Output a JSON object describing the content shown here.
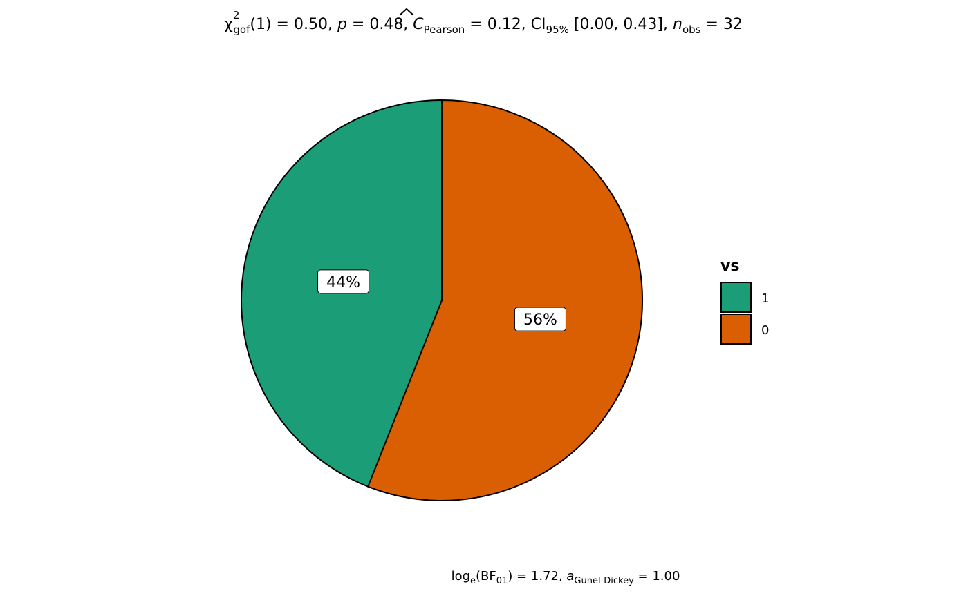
{
  "chart_data": {
    "type": "pie",
    "title": {
      "chi_symbol": "χ",
      "chi_sup": "2",
      "chi_sub": "gof",
      "df": "(1)",
      "eq1": " = 0.50, ",
      "p": "p",
      "eq2": " = 0.48, ",
      "c": "C",
      "c_sub": "Pearson",
      "eq3": " = 0.12, CI",
      "ci_sub": "95%",
      "ci": " [0.00, 0.43], ",
      "n": "n",
      "n_sub": "obs",
      "eq4": " = 32"
    },
    "caption": {
      "log": "log",
      "log_sub": "e",
      "bf_open": "(BF",
      "bf_sub": "01",
      "bf_close": ") = 1.72, ",
      "a": "a",
      "a_sub": "Gunel-Dickey",
      "eq": " = 1.00"
    },
    "legend": {
      "title": "vs",
      "placement": "right"
    },
    "slices": [
      {
        "category": "1",
        "value": 44,
        "label": "44%",
        "color": "#1B9E77"
      },
      {
        "category": "0",
        "value": 56,
        "label": "56%",
        "color": "#D95F02"
      }
    ],
    "stroke_color": "#000000"
  }
}
